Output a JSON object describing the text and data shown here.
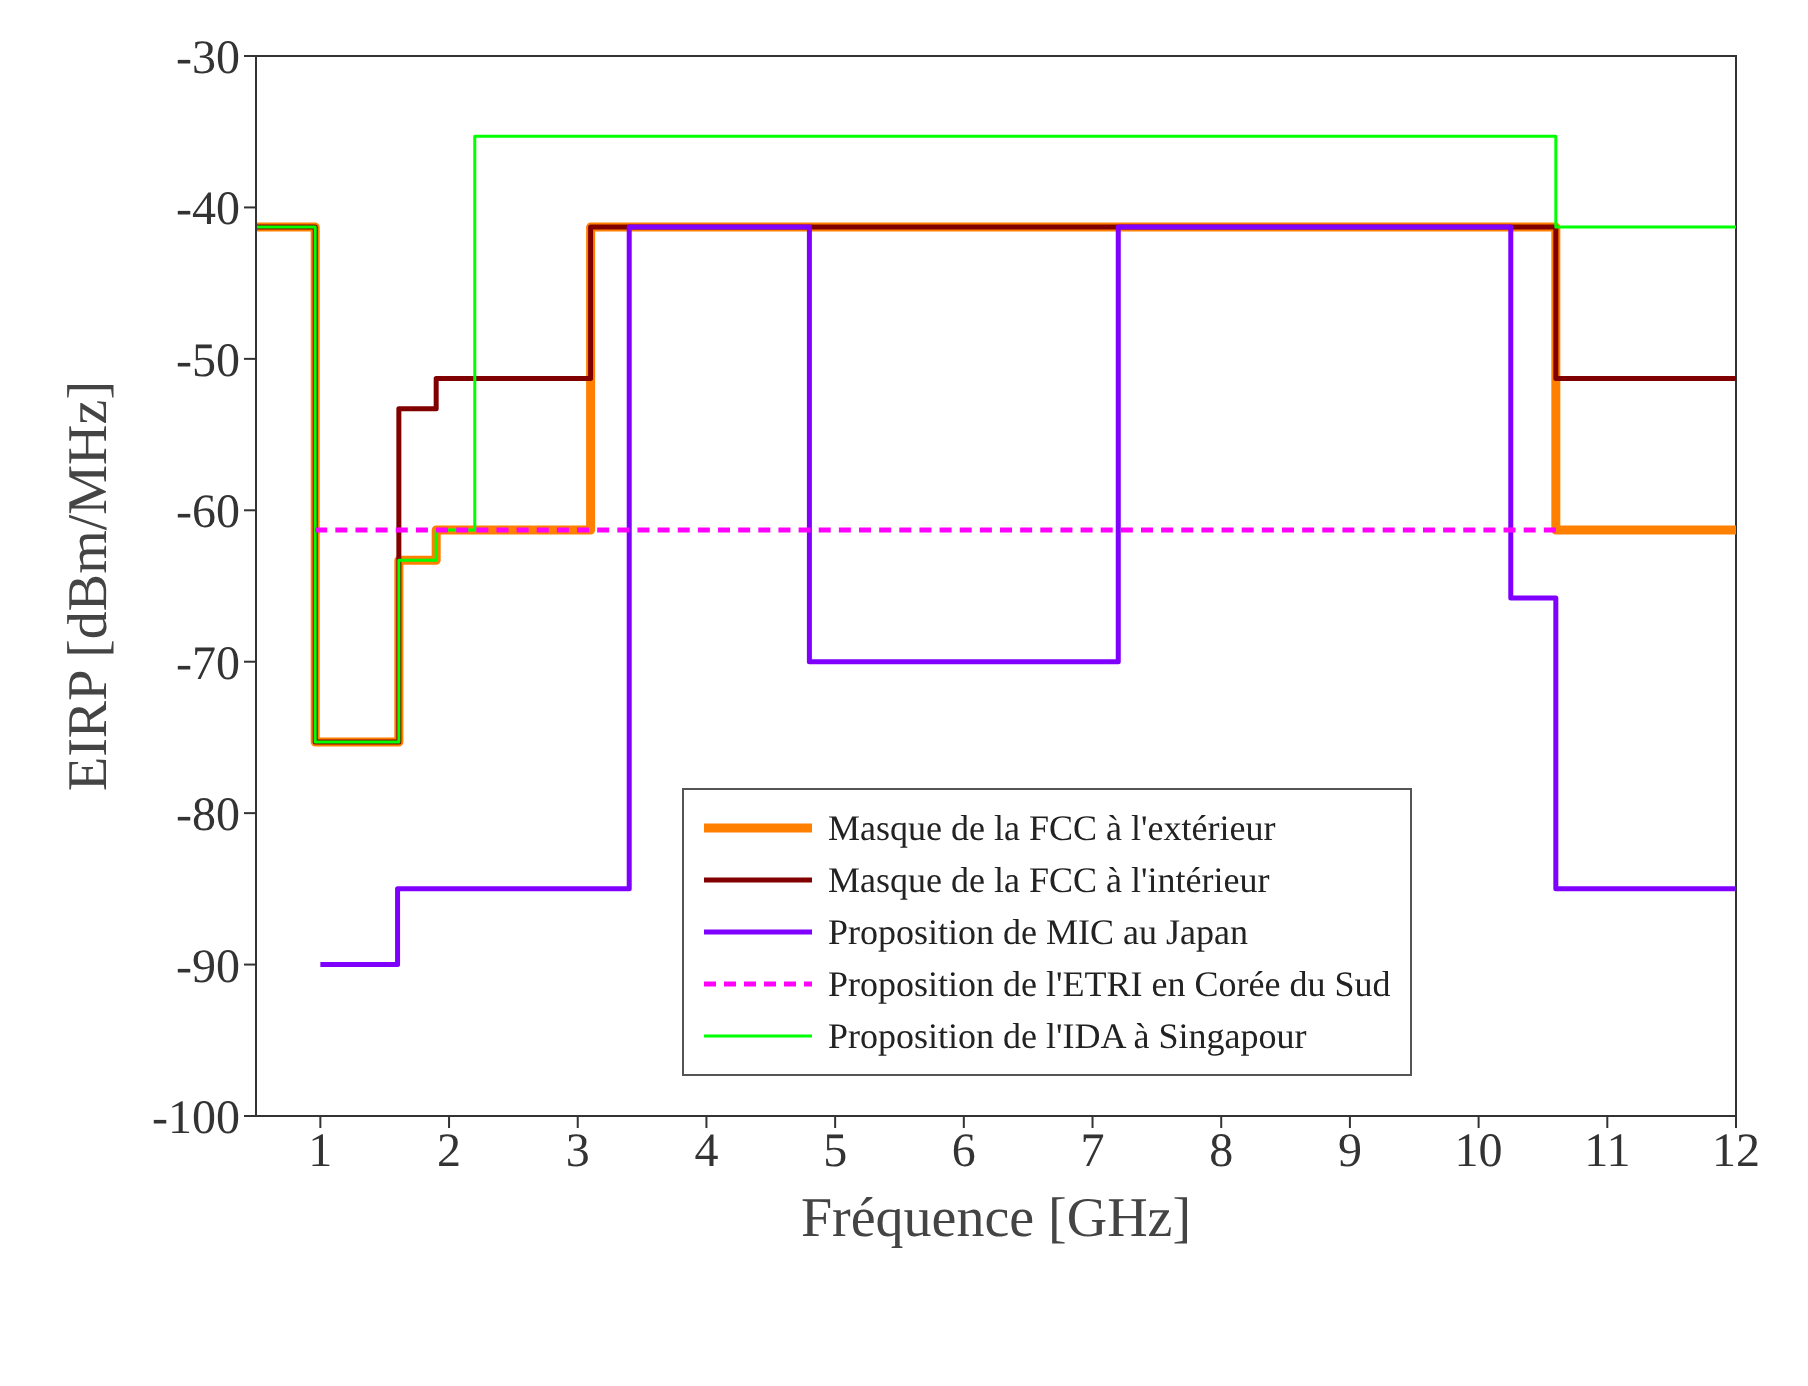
{
  "chart_data": {
    "type": "step",
    "xlabel": "Fréquence [GHz]",
    "ylabel": "EIRP [dBm/MHz]",
    "xlim": [
      0.5,
      12
    ],
    "xticks": [
      1,
      2,
      3,
      4,
      5,
      6,
      7,
      8,
      9,
      10,
      11,
      12
    ],
    "ylim": [
      -100,
      -30
    ],
    "yticks": [
      -100,
      -90,
      -80,
      -70,
      -60,
      -50,
      -40,
      -30
    ],
    "grid": false,
    "legend": "bottom",
    "marker": "none",
    "series": [
      {
        "name": "Masque de la FCC à l'extérieur",
        "color": "#ff8000",
        "x": [
          0.5,
          0.96,
          1.61,
          1.9,
          3.1,
          10.6,
          12
        ],
        "values": [
          -41.3,
          -75.3,
          -63.3,
          -61.3,
          -41.3,
          -61.3,
          -61.3
        ]
      },
      {
        "name": "Masque de la FCC à l'intérieur",
        "color": "#800000",
        "x": [
          0.5,
          0.96,
          1.61,
          1.9,
          3.1,
          10.6,
          12
        ],
        "values": [
          -41.3,
          -75.3,
          -53.3,
          -51.3,
          -41.3,
          -51.3,
          -51.3
        ]
      },
      {
        "name": "Proposition de MIC au Japan",
        "color": "#8000ff",
        "x": [
          1,
          1.6,
          3.4,
          4.8,
          7.2,
          10.25,
          10.6,
          12
        ],
        "values": [
          -90,
          -85,
          -41.3,
          -70,
          -41.3,
          -65.8,
          -85,
          -85
        ]
      },
      {
        "name": "Proposition de l'ETRI en Corée du Sud",
        "color": "#ff00ff",
        "line_style": "dashed",
        "x": [
          0.96,
          10.6
        ],
        "values": [
          -61.3,
          -61.3
        ]
      },
      {
        "name": "Proposition de l'IDA à Singapour",
        "color": "#00ff00",
        "x": [
          0.5,
          0.96,
          1.61,
          1.9,
          2.2,
          10.6,
          12
        ],
        "values": [
          -41.3,
          -75.3,
          -63.3,
          -61.3,
          -35.3,
          -41.3,
          -41.3
        ]
      }
    ]
  }
}
